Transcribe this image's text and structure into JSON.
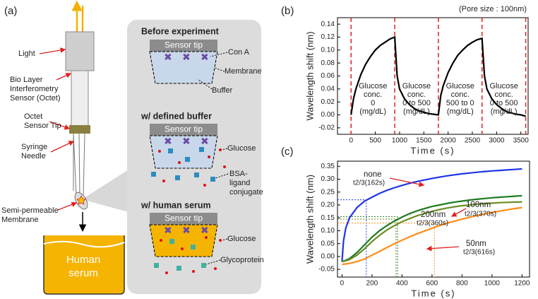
{
  "diagram": {
    "panel_label": "(a)",
    "labels": [
      {
        "lines": [
          "Light"
        ]
      },
      {
        "lines": [
          "Bio Layer",
          "Interferometry",
          "Sensor (Octet)"
        ]
      },
      {
        "lines": [
          "Octet",
          "Sensor Tip"
        ]
      },
      {
        "lines": [
          "Syringe",
          "Needle"
        ]
      },
      {
        "lines": [
          "Semi-permeable",
          "Membrane"
        ]
      },
      {
        "lines": [
          "Human",
          "serum"
        ]
      }
    ],
    "sections": [
      {
        "title": "Before experiment",
        "tip": "Sensor tip",
        "labels": [
          {
            "lines": [
              "Con A"
            ]
          },
          {
            "lines": [
              "Membrane"
            ]
          },
          {
            "lines": [
              "Buffer"
            ]
          }
        ]
      },
      {
        "title": "w/ defined buffer",
        "tip": "Sensor tip",
        "labels": [
          {
            "lines": [
              "Glucose"
            ]
          },
          {
            "lines": [
              "BSA-",
              "ligand",
              "conjugate"
            ]
          }
        ]
      },
      {
        "title": "w/ human serum",
        "tip": "Sensor tip",
        "labels": [
          {
            "lines": [
              "Glucose"
            ]
          },
          {
            "lines": [
              "Glycoprotein"
            ]
          }
        ]
      }
    ]
  },
  "chart_data": [
    {
      "type": "line",
      "panel_label": "(b)",
      "note": "(Pore size : 100nm)",
      "xlabel": "Time (s)",
      "ylabel": "Wavelength shift (nm)",
      "x": [
        0,
        50,
        100,
        200,
        300,
        400,
        500,
        600,
        700,
        800,
        900,
        950,
        1000,
        1100,
        1200,
        1300,
        1400,
        1500,
        1600,
        1700,
        1800,
        1850,
        1900,
        2000,
        2100,
        2200,
        2300,
        2400,
        2500,
        2600,
        2700,
        2750,
        2800,
        2900,
        3000,
        3100,
        3200,
        3300,
        3400,
        3500,
        3600
      ],
      "series": [
        {
          "color": "#000000",
          "values": [
            0,
            0.025,
            0.04,
            0.062,
            0.078,
            0.09,
            0.1,
            0.107,
            0.112,
            0.117,
            0.12,
            0.06,
            0.04,
            0.025,
            0.016,
            0.01,
            0.006,
            0.004,
            0.002,
            0.001,
            0,
            0.03,
            0.045,
            0.065,
            0.08,
            0.092,
            0.1,
            0.107,
            0.112,
            0.116,
            0.118,
            0.06,
            0.04,
            0.025,
            0.016,
            0.01,
            0.005,
            0.003,
            0.001,
            0,
            -0.002
          ]
        }
      ],
      "xlim": [
        -280,
        3650
      ],
      "ylim": [
        -0.03,
        0.15
      ],
      "xticks": [
        0,
        500,
        1000,
        1500,
        2000,
        2500,
        3000,
        3500
      ],
      "yticks": [
        -0.02,
        {
          "value": 0,
          "label": "0.00"
        },
        0.02,
        0.04,
        0.06,
        0.08,
        {
          "value": 0.1,
          "label": "0.10"
        },
        0.12,
        0.14
      ],
      "vlines": [
        0,
        900,
        1800,
        2700,
        3600
      ],
      "vline_color": "#e02020",
      "annotations": [
        {
          "lines": [
            "Glucose",
            "conc.",
            "0",
            "(mg/dL)"
          ]
        },
        {
          "lines": [
            "Glucose",
            "conc.",
            "0 to 500",
            "(mg/dL)"
          ]
        },
        {
          "lines": [
            "Glucose",
            "conc.",
            "500 to 0",
            "(mg/dL)"
          ]
        },
        {
          "lines": [
            "Glucose",
            "conc.",
            "0 to 500",
            "(mg/dL)"
          ]
        }
      ]
    },
    {
      "type": "line",
      "panel_label": "(c)",
      "xlabel": "Time (s)",
      "ylabel": "Wavelength shift (nm)",
      "x": [
        0,
        10,
        25,
        50,
        100,
        150,
        200,
        250,
        300,
        350,
        400,
        450,
        500,
        550,
        600,
        650,
        700,
        750,
        800,
        850,
        900,
        950,
        1000,
        1050,
        1100,
        1150,
        1200
      ],
      "series": [
        {
          "name": "none",
          "note": "t2/3(162s)",
          "color": "#1f35e6",
          "guide": {
            "x": 162,
            "y": 0.22
          },
          "values": [
            -0.02,
            0.06,
            0.11,
            0.15,
            0.19,
            0.215,
            0.23,
            0.245,
            0.257,
            0.267,
            0.276,
            0.284,
            0.291,
            0.297,
            0.303,
            0.308,
            0.313,
            0.317,
            0.321,
            0.324,
            0.327,
            0.33,
            0.332,
            0.334,
            0.336,
            0.338,
            0.34
          ]
        },
        {
          "name": "100nm",
          "note": "t2/3(370s)",
          "color": "#1e7a1e",
          "guide": {
            "x": 370,
            "y": 0.155
          },
          "values": [
            -0.02,
            -0.018,
            -0.015,
            -0.008,
            0.015,
            0.045,
            0.075,
            0.1,
            0.12,
            0.138,
            0.153,
            0.166,
            0.177,
            0.186,
            0.194,
            0.2,
            0.206,
            0.211,
            0.215,
            0.219,
            0.222,
            0.225,
            0.228,
            0.23,
            0.232,
            0.234,
            0.236
          ]
        },
        {
          "name": "200nm",
          "note": "t2/3(360s)",
          "color": "#6b8e23",
          "guide": {
            "x": 360,
            "y": 0.145
          },
          "values": [
            -0.02,
            -0.019,
            -0.017,
            -0.012,
            0.005,
            0.03,
            0.058,
            0.082,
            0.103,
            0.12,
            0.135,
            0.147,
            0.158,
            0.167,
            0.175,
            0.182,
            0.188,
            0.193,
            0.197,
            0.2,
            0.203,
            0.205,
            0.207,
            0.209,
            0.21,
            0.211,
            0.212
          ]
        },
        {
          "name": "50nm",
          "note": "t2/3(616s)",
          "color": "#ff8c1a",
          "guide": {
            "x": 616,
            "y": 0.13
          },
          "values": [
            -0.03,
            -0.03,
            -0.029,
            -0.027,
            -0.02,
            -0.01,
            0.005,
            0.02,
            0.035,
            0.05,
            0.063,
            0.076,
            0.088,
            0.099,
            0.11,
            0.12,
            0.129,
            0.137,
            0.145,
            0.152,
            0.159,
            0.165,
            0.171,
            0.176,
            0.181,
            0.186,
            0.19
          ]
        }
      ],
      "xlim": [
        -30,
        1250
      ],
      "ylim": [
        -0.08,
        0.37
      ],
      "xticks": [
        0,
        200,
        400,
        600,
        800,
        1000,
        1200
      ],
      "yticks": [
        -0.05,
        {
          "value": 0,
          "label": "0.00"
        },
        0.05,
        {
          "value": 0.1,
          "label": "0.10"
        },
        0.15,
        {
          "value": 0.2,
          "label": "0.20"
        },
        0.25,
        {
          "value": 0.3,
          "label": "0.30"
        },
        0.35
      ]
    }
  ]
}
